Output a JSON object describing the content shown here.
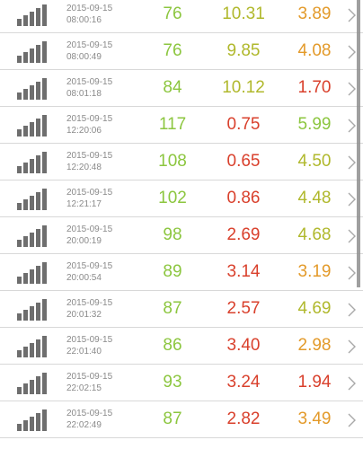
{
  "colors": {
    "green": "#8cc63f",
    "olive": "#b0b82c",
    "amber": "#e39a2a",
    "red": "#d9402c",
    "signal": "#6e6e6e",
    "timestamp": "#8a8a8a"
  },
  "icons": {
    "signal": "signal-strength-icon",
    "chevron": "chevron-right-icon"
  },
  "rows": [
    {
      "date": "2015-09-15",
      "time": "08:00:16",
      "v1": "76",
      "v2": "10.31",
      "v3": "3.89",
      "c1": "green",
      "c2": "olive",
      "c3": "amber"
    },
    {
      "date": "2015-09-15",
      "time": "08:00:49",
      "v1": "76",
      "v2": "9.85",
      "v3": "4.08",
      "c1": "green",
      "c2": "olive",
      "c3": "amber"
    },
    {
      "date": "2015-09-15",
      "time": "08:01:18",
      "v1": "84",
      "v2": "10.12",
      "v3": "1.70",
      "c1": "green",
      "c2": "olive",
      "c3": "red"
    },
    {
      "date": "2015-09-15",
      "time": "12:20:06",
      "v1": "117",
      "v2": "0.75",
      "v3": "5.99",
      "c1": "green",
      "c2": "red",
      "c3": "green"
    },
    {
      "date": "2015-09-15",
      "time": "12:20:48",
      "v1": "108",
      "v2": "0.65",
      "v3": "4.50",
      "c1": "green",
      "c2": "red",
      "c3": "olive"
    },
    {
      "date": "2015-09-15",
      "time": "12:21:17",
      "v1": "102",
      "v2": "0.86",
      "v3": "4.48",
      "c1": "green",
      "c2": "red",
      "c3": "olive"
    },
    {
      "date": "2015-09-15",
      "time": "20:00:19",
      "v1": "98",
      "v2": "2.69",
      "v3": "4.68",
      "c1": "green",
      "c2": "red",
      "c3": "olive"
    },
    {
      "date": "2015-09-15",
      "time": "20:00:54",
      "v1": "89",
      "v2": "3.14",
      "v3": "3.19",
      "c1": "green",
      "c2": "red",
      "c3": "amber"
    },
    {
      "date": "2015-09-15",
      "time": "20:01:32",
      "v1": "87",
      "v2": "2.57",
      "v3": "4.69",
      "c1": "green",
      "c2": "red",
      "c3": "olive"
    },
    {
      "date": "2015-09-15",
      "time": "22:01:40",
      "v1": "86",
      "v2": "3.40",
      "v3": "2.98",
      "c1": "green",
      "c2": "red",
      "c3": "amber"
    },
    {
      "date": "2015-09-15",
      "time": "22:02:15",
      "v1": "93",
      "v2": "3.24",
      "v3": "1.94",
      "c1": "green",
      "c2": "red",
      "c3": "red"
    },
    {
      "date": "2015-09-15",
      "time": "22:02:49",
      "v1": "87",
      "v2": "2.82",
      "v3": "3.49",
      "c1": "green",
      "c2": "red",
      "c3": "amber"
    }
  ]
}
